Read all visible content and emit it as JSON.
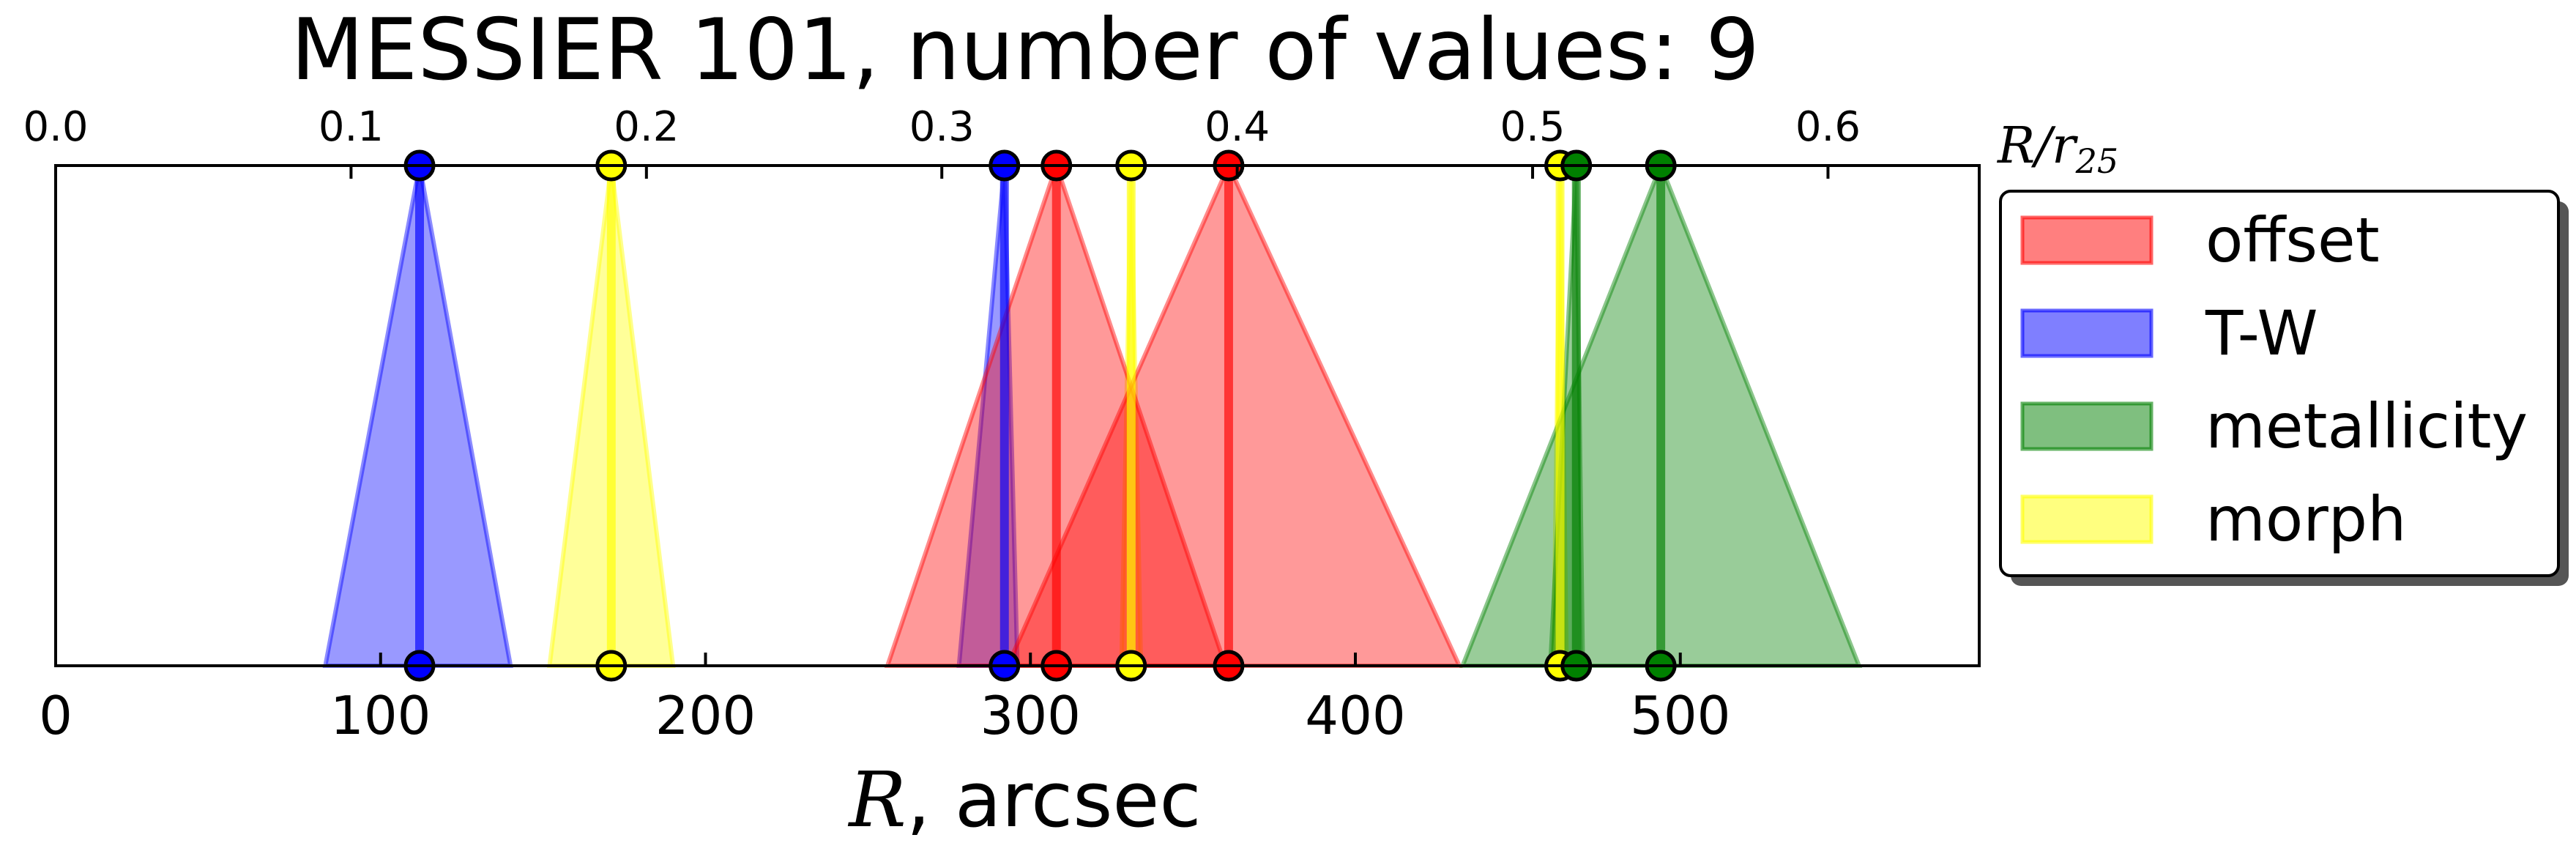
{
  "chart_data": {
    "type": "area",
    "title": "MESSIER 101, number of values: 9",
    "xlabel_italic": "R",
    "xlabel_rest": ", arcsec",
    "top_axis_label": "R/r",
    "top_axis_label_sub": "25",
    "xlim": [
      0,
      592
    ],
    "top_axis_scale": 0.0011,
    "bottom_ticks": [
      "0",
      "100",
      "200",
      "300",
      "400",
      "500"
    ],
    "bottom_tick_values": [
      0,
      100,
      200,
      300,
      400,
      500
    ],
    "top_ticks": [
      "0.0",
      "0.1",
      "0.2",
      "0.3",
      "0.4",
      "0.5",
      "0.6"
    ],
    "top_tick_values": [
      0.0,
      0.1,
      0.2,
      0.3,
      0.4,
      0.5,
      0.6
    ],
    "colors": {
      "offset": "#ff0000",
      "T-W": "#0000ff",
      "metallicity": "#008000",
      "morph": "#ffff00"
    },
    "legend_position": "right",
    "series": [
      {
        "name": "offset",
        "values": [
          {
            "R": 308,
            "low": 256,
            "high": 360
          },
          {
            "R": 361,
            "low": 293,
            "high": 432
          }
        ]
      },
      {
        "name": "T-W",
        "values": [
          {
            "R": 112,
            "low": 83,
            "high": 140
          },
          {
            "R": 292,
            "low": 278,
            "high": 296
          }
        ]
      },
      {
        "name": "metallicity",
        "values": [
          {
            "R": 468,
            "low": 460,
            "high": 470
          },
          {
            "R": 494,
            "low": 433,
            "high": 555
          }
        ]
      },
      {
        "name": "morph",
        "values": [
          {
            "R": 171,
            "low": 152,
            "high": 190
          },
          {
            "R": 331,
            "low": 328,
            "high": 334
          },
          {
            "R": 463,
            "low": 461,
            "high": 465
          }
        ]
      }
    ]
  }
}
